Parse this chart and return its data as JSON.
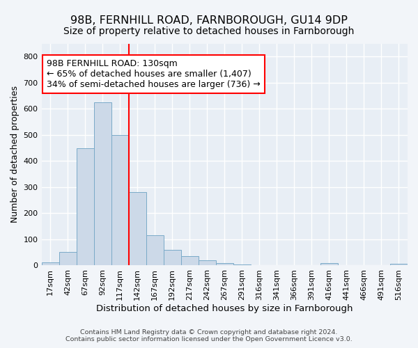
{
  "title": "98B, FERNHILL ROAD, FARNBOROUGH, GU14 9DP",
  "subtitle": "Size of property relative to detached houses in Farnborough",
  "xlabel": "Distribution of detached houses by size in Farnborough",
  "ylabel": "Number of detached properties",
  "footer_line1": "Contains HM Land Registry data © Crown copyright and database right 2024.",
  "footer_line2": "Contains public sector information licensed under the Open Government Licence v3.0.",
  "bin_labels": [
    "17sqm",
    "42sqm",
    "67sqm",
    "92sqm",
    "117sqm",
    "142sqm",
    "167sqm",
    "192sqm",
    "217sqm",
    "242sqm",
    "267sqm",
    "291sqm",
    "316sqm",
    "341sqm",
    "366sqm",
    "391sqm",
    "416sqm",
    "441sqm",
    "466sqm",
    "491sqm",
    "516sqm"
  ],
  "bin_values": [
    12,
    52,
    450,
    625,
    500,
    280,
    117,
    60,
    35,
    20,
    9,
    5,
    0,
    0,
    0,
    0,
    8,
    0,
    0,
    0,
    6
  ],
  "bar_color": "#ccd9e8",
  "bar_edge_color": "#7aaac8",
  "vline_x": 5,
  "vline_color": "red",
  "annotation_line1": "98B FERNHILL ROAD: 130sqm",
  "annotation_line2": "← 65% of detached houses are smaller (1,407)",
  "annotation_line3": "34% of semi-detached houses are larger (736) →",
  "annotation_box_color": "white",
  "annotation_box_edge_color": "red",
  "ylim": [
    0,
    850
  ],
  "yticks": [
    0,
    100,
    200,
    300,
    400,
    500,
    600,
    700,
    800
  ],
  "background_color": "#f2f5f9",
  "plot_bg_color": "#e8eef5",
  "grid_color": "white",
  "title_fontsize": 11.5,
  "subtitle_fontsize": 10,
  "axis_label_fontsize": 9.5,
  "tick_fontsize": 8,
  "annotation_fontsize": 9,
  "footer_fontsize": 6.8,
  "ylabel_fontsize": 9
}
